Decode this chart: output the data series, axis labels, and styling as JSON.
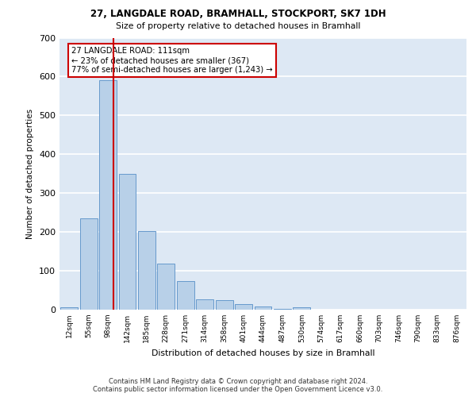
{
  "title_line1": "27, LANGDALE ROAD, BRAMHALL, STOCKPORT, SK7 1DH",
  "title_line2": "Size of property relative to detached houses in Bramhall",
  "xlabel": "Distribution of detached houses by size in Bramhall",
  "ylabel": "Number of detached properties",
  "footnote1": "Contains HM Land Registry data © Crown copyright and database right 2024.",
  "footnote2": "Contains public sector information licensed under the Open Government Licence v3.0.",
  "bar_labels": [
    "12sqm",
    "55sqm",
    "98sqm",
    "142sqm",
    "185sqm",
    "228sqm",
    "271sqm",
    "314sqm",
    "358sqm",
    "401sqm",
    "444sqm",
    "487sqm",
    "530sqm",
    "574sqm",
    "617sqm",
    "660sqm",
    "703sqm",
    "746sqm",
    "790sqm",
    "833sqm",
    "876sqm"
  ],
  "bar_values": [
    7,
    235,
    590,
    350,
    203,
    118,
    73,
    27,
    25,
    15,
    8,
    3,
    6,
    0,
    0,
    0,
    0,
    0,
    0,
    0,
    0
  ],
  "bar_color": "#b8d0e8",
  "bar_edge_color": "#6699cc",
  "background_color": "#dde8f4",
  "grid_color": "#ffffff",
  "annotation_text": "27 LANGDALE ROAD: 111sqm\n← 23% of detached houses are smaller (367)\n77% of semi-detached houses are larger (1,243) →",
  "annotation_box_color": "#ffffff",
  "annotation_box_edge_color": "#cc0000",
  "property_line_color": "#cc0000",
  "ylim": [
    0,
    700
  ],
  "yticks": [
    0,
    100,
    200,
    300,
    400,
    500,
    600,
    700
  ],
  "prop_size": 111,
  "bin_starts": [
    12,
    55,
    98,
    142,
    185,
    228,
    271,
    314,
    358,
    401,
    444,
    487,
    530,
    574,
    617,
    660,
    703,
    746,
    790,
    833,
    876
  ]
}
